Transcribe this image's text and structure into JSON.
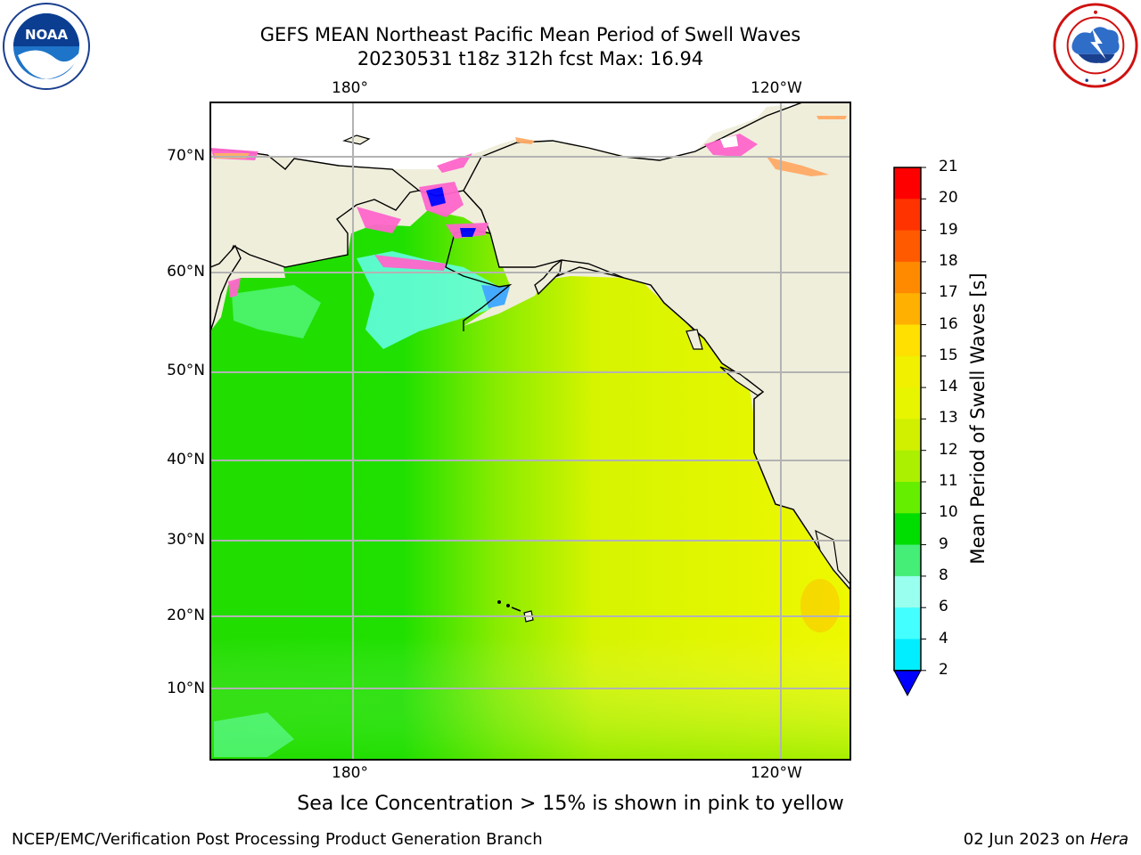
{
  "title": {
    "line1": "GEFS MEAN Northeast Pacific Mean Period of Swell Waves",
    "line2": "20230531 t18z 312h fcst   Max: 16.94"
  },
  "logos": {
    "left": {
      "name": "NOAA",
      "text": "NOAA",
      "ring_text": "NATIONAL OCEANIC AND ATMOSPHERIC ADMINISTRATION · U.S. DEPARTMENT OF COMMERCE"
    },
    "right": {
      "name": "National Weather Service",
      "ring_text": "NATIONAL WEATHER SERVICE"
    }
  },
  "map": {
    "lon_labels_top": [
      "180°",
      "120°W"
    ],
    "lon_labels_bottom": [
      "180°",
      "120°W"
    ],
    "lat_labels": [
      "70°N",
      "60°N",
      "50°N",
      "40°N",
      "30°N",
      "20°N",
      "10°N"
    ],
    "colors": {
      "land": "#efeedb",
      "coast": "#000000",
      "grid": "#b0b0b0",
      "ocean_west": "#22e000",
      "ocean_east": "#e4f500",
      "ice": "#ff66cc",
      "deep_blue": "#0000ff"
    }
  },
  "colorbar": {
    "label": "Mean Period of Swell Waves [s]",
    "ticks": [
      "21",
      "20",
      "19",
      "18",
      "17",
      "16",
      "15",
      "14",
      "13",
      "12",
      "11",
      "10",
      "9",
      "8",
      "6",
      "4",
      "2"
    ],
    "bin_colors": [
      "#ff0000",
      "#ff3300",
      "#ff5a00",
      "#ff8a00",
      "#ffb000",
      "#ffe000",
      "#f0f000",
      "#e8f500",
      "#d0f000",
      "#aaf000",
      "#66ee00",
      "#00dd00",
      "#44ee77",
      "#99ffee",
      "#44ffff",
      "#00eeff",
      "#00bbff",
      "#0077ff"
    ],
    "extend_color": "#0000ff"
  },
  "notes": {
    "ice": "Sea Ice Concentration > 15% is shown in pink to yellow"
  },
  "footer": {
    "left": "NCEP/EMC/Verification Post Processing Product Generation Branch",
    "right_date": "02 Jun 2023 on ",
    "right_host": "Hera"
  }
}
